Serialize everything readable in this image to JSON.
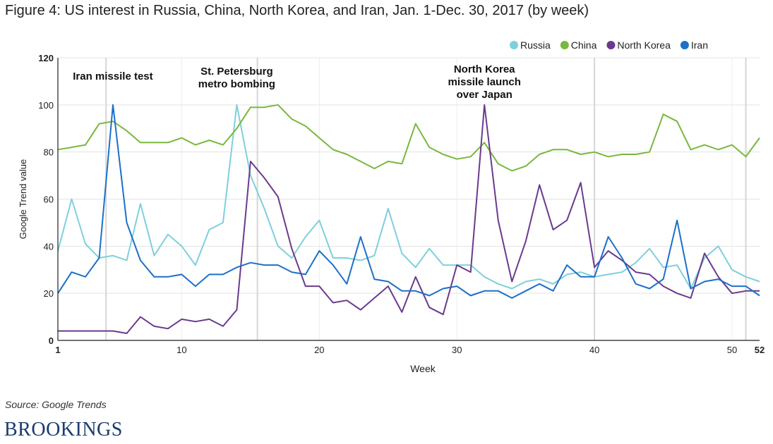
{
  "header": {
    "title": "Figure 4: US interest in Russia, China, North Korea, and Iran, Jan. 1-Dec. 30, 2017 (by week)"
  },
  "footer": {
    "source": "Source: Google Trends",
    "brand": "BROOKINGS"
  },
  "chart_data": {
    "type": "line",
    "title": "Figure 4: US interest in Russia, China, North Korea, and Iran, Jan. 1-Dec. 30, 2017 (by week)",
    "xlabel": "Week",
    "ylabel": "Google Trend value",
    "xlim": [
      1,
      52
    ],
    "ylim": [
      0,
      120
    ],
    "xticks": [
      1,
      10,
      20,
      30,
      40,
      50,
      52
    ],
    "yticks": [
      0,
      20,
      40,
      60,
      80,
      100,
      120
    ],
    "x": [
      1,
      2,
      3,
      4,
      5,
      6,
      7,
      8,
      9,
      10,
      11,
      12,
      13,
      14,
      15,
      16,
      17,
      18,
      19,
      20,
      21,
      22,
      23,
      24,
      25,
      26,
      27,
      28,
      29,
      30,
      31,
      32,
      33,
      34,
      35,
      36,
      37,
      38,
      39,
      40,
      41,
      42,
      43,
      44,
      45,
      46,
      47,
      48,
      49,
      50,
      51,
      52
    ],
    "legend_position": "top-right",
    "series": [
      {
        "name": "Russia",
        "color": "#7fcfdc",
        "values": [
          38,
          60,
          41,
          35,
          36,
          34,
          58,
          36,
          45,
          40,
          32,
          47,
          50,
          100,
          70,
          56,
          40,
          35,
          44,
          51,
          35,
          35,
          34,
          36,
          56,
          37,
          31,
          39,
          32,
          32,
          32,
          27,
          24,
          22,
          25,
          26,
          24,
          28,
          29,
          27,
          28,
          29,
          33,
          39,
          31,
          32,
          22,
          35,
          40,
          30,
          27,
          25
        ]
      },
      {
        "name": "China",
        "color": "#78b83e",
        "values": [
          81,
          82,
          83,
          92,
          93,
          89,
          84,
          84,
          84,
          86,
          83,
          85,
          83,
          90,
          99,
          99,
          100,
          94,
          91,
          86,
          81,
          79,
          76,
          73,
          76,
          75,
          92,
          82,
          79,
          77,
          78,
          84,
          75,
          72,
          74,
          79,
          81,
          81,
          79,
          80,
          78,
          79,
          79,
          80,
          96,
          93,
          81,
          83,
          81,
          83,
          78,
          86
        ]
      },
      {
        "name": "North Korea",
        "color": "#6a3a8e",
        "values": [
          4,
          4,
          4,
          4,
          4,
          3,
          10,
          6,
          5,
          9,
          8,
          9,
          6,
          13,
          76,
          69,
          61,
          39,
          23,
          23,
          16,
          17,
          13,
          18,
          23,
          12,
          27,
          14,
          11,
          32,
          29,
          100,
          51,
          25,
          42,
          66,
          47,
          51,
          67,
          31,
          38,
          34,
          29,
          28,
          23,
          20,
          18,
          37,
          27,
          20,
          21,
          21
        ]
      },
      {
        "name": "Iran",
        "color": "#1c70c8",
        "values": [
          20,
          29,
          27,
          35,
          100,
          50,
          34,
          27,
          27,
          28,
          23,
          28,
          28,
          31,
          33,
          32,
          32,
          29,
          28,
          38,
          32,
          24,
          44,
          26,
          25,
          21,
          21,
          19,
          22,
          23,
          19,
          21,
          21,
          18,
          21,
          24,
          21,
          32,
          27,
          27,
          44,
          35,
          24,
          22,
          26,
          51,
          22,
          25,
          26,
          23,
          23,
          19
        ]
      }
    ],
    "vertical_markers": [
      4.5,
      15.5,
      40,
      51
    ],
    "annotations": [
      {
        "week": 5,
        "lines": [
          "Iran missile test"
        ]
      },
      {
        "week": 14,
        "lines": [
          "St. Petersburg",
          "metro bombing"
        ]
      },
      {
        "week": 32,
        "lines": [
          "North Korea",
          "missile launch",
          "over Japan"
        ]
      }
    ]
  }
}
